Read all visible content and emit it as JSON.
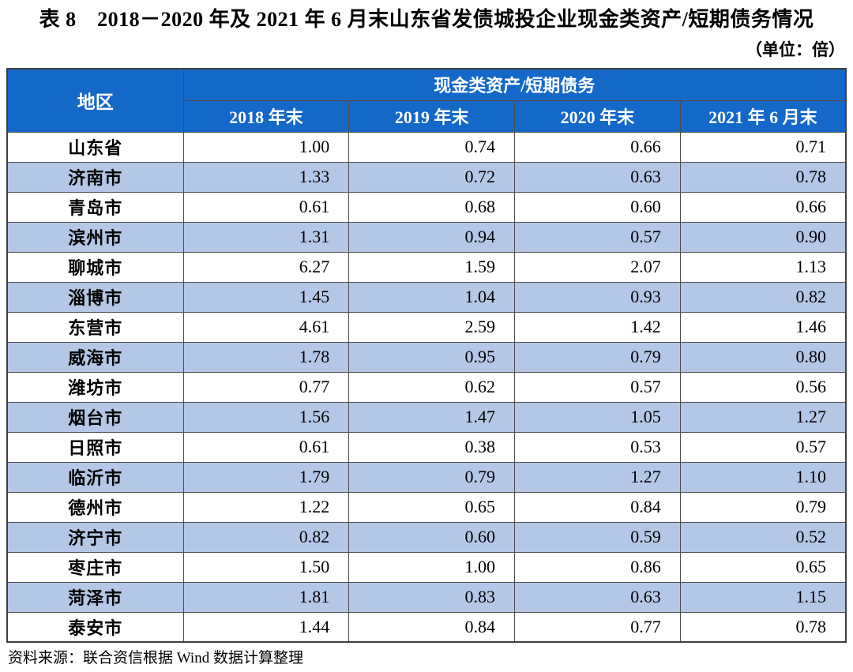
{
  "title": "表 8　2018－2020 年及 2021 年 6 月末山东省发债城投企业现金类资产/短期债务情况",
  "unit_note": "（单位：倍）",
  "table": {
    "region_header": "地区",
    "group_header": "现金类资产/短期债务",
    "period_headers": [
      "2018 年末",
      "2019 年末",
      "2020 年末",
      "2021 年 6 月末"
    ],
    "rows": [
      {
        "region": "山东省",
        "values": [
          "1.00",
          "0.74",
          "0.66",
          "0.71"
        ]
      },
      {
        "region": "济南市",
        "values": [
          "1.33",
          "0.72",
          "0.63",
          "0.78"
        ]
      },
      {
        "region": "青岛市",
        "values": [
          "0.61",
          "0.68",
          "0.60",
          "0.66"
        ]
      },
      {
        "region": "滨州市",
        "values": [
          "1.31",
          "0.94",
          "0.57",
          "0.90"
        ]
      },
      {
        "region": "聊城市",
        "values": [
          "6.27",
          "1.59",
          "2.07",
          "1.13"
        ]
      },
      {
        "region": "淄博市",
        "values": [
          "1.45",
          "1.04",
          "0.93",
          "0.82"
        ]
      },
      {
        "region": "东营市",
        "values": [
          "4.61",
          "2.59",
          "1.42",
          "1.46"
        ]
      },
      {
        "region": "威海市",
        "values": [
          "1.78",
          "0.95",
          "0.79",
          "0.80"
        ]
      },
      {
        "region": "潍坊市",
        "values": [
          "0.77",
          "0.62",
          "0.57",
          "0.56"
        ]
      },
      {
        "region": "烟台市",
        "values": [
          "1.56",
          "1.47",
          "1.05",
          "1.27"
        ]
      },
      {
        "region": "日照市",
        "values": [
          "0.61",
          "0.38",
          "0.53",
          "0.57"
        ]
      },
      {
        "region": "临沂市",
        "values": [
          "1.79",
          "0.79",
          "1.27",
          "1.10"
        ]
      },
      {
        "region": "德州市",
        "values": [
          "1.22",
          "0.65",
          "0.84",
          "0.79"
        ]
      },
      {
        "region": "济宁市",
        "values": [
          "0.82",
          "0.60",
          "0.59",
          "0.52"
        ]
      },
      {
        "region": "枣庄市",
        "values": [
          "1.50",
          "1.00",
          "0.86",
          "0.65"
        ]
      },
      {
        "region": "菏泽市",
        "values": [
          "1.81",
          "0.83",
          "0.63",
          "1.15"
        ]
      },
      {
        "region": "泰安市",
        "values": [
          "1.44",
          "0.84",
          "0.77",
          "0.78"
        ]
      }
    ]
  },
  "source_note": "资料来源：联合资信根据 Wind 数据计算整理",
  "colors": {
    "header_bg": "#1468c8",
    "zebra_bg": "#b4c7e7",
    "border": "#4d4d4d",
    "header_text": "#ffffff"
  }
}
